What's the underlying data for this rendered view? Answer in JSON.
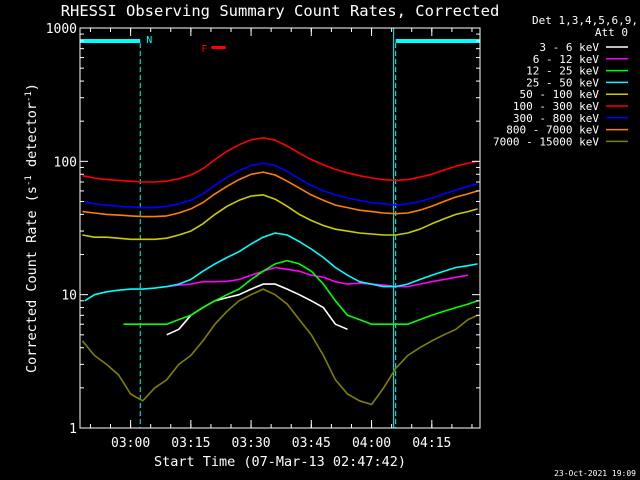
{
  "chart_data": {
    "type": "line",
    "title": "RHESSI Observing Summary Count Rates, Corrected",
    "xlabel": "Start Time (07-Mar-13 02:47:42)",
    "ylabel_main": "Corrected Count Rate (s",
    "ylabel_sup1": "-1",
    "ylabel_mid": " detector",
    "ylabel_sup2": "-1",
    "ylabel_end": ")",
    "yscale": "log",
    "ylim": [
      1,
      1000
    ],
    "xlim": [
      2.79,
      4.45
    ],
    "ytick_labels": [
      "1",
      "10",
      "100",
      "1000"
    ],
    "ytick_values": [
      1,
      10,
      100,
      1000
    ],
    "xtick_labels": [
      "03:00",
      "03:15",
      "03:30",
      "03:45",
      "04:00",
      "04:15"
    ],
    "xtick_values": [
      3.0,
      3.25,
      3.5,
      3.75,
      4.0,
      4.25
    ],
    "legend_title": [
      "Det 1,3,4,5,6,9,",
      "Att 0"
    ],
    "legend_placement": "right",
    "footer": "23-Oct-2021 19:09",
    "night_marker": "N",
    "flare_marker": "F",
    "night_intervals": [
      [
        2.79,
        3.04
      ],
      [
        4.1,
        4.45
      ]
    ],
    "flare_interval": [
      3.335,
      3.395
    ],
    "series": [
      {
        "name": "3 - 6 keV",
        "color": "#ffffff",
        "x": [
          3.15,
          3.2,
          3.25,
          3.3,
          3.35,
          3.4,
          3.45,
          3.5,
          3.55,
          3.6,
          3.65,
          3.7,
          3.75,
          3.8,
          3.85,
          3.9
        ],
        "y": [
          5,
          5.5,
          7,
          8,
          9,
          9.5,
          10,
          11,
          12,
          12,
          11,
          10,
          9,
          8,
          6,
          5.5
        ]
      },
      {
        "name": "6 - 12 keV",
        "color": "#ff00ff",
        "x": [
          3.15,
          3.2,
          3.25,
          3.3,
          3.35,
          3.4,
          3.45,
          3.5,
          3.55,
          3.6,
          3.65,
          3.7,
          3.75,
          3.8,
          3.85,
          3.9,
          3.95,
          4.0,
          4.05,
          4.1,
          4.15,
          4.2,
          4.25,
          4.3,
          4.35,
          4.4
        ],
        "y": [
          11.5,
          11.8,
          12,
          12.5,
          12.5,
          12.6,
          13,
          14,
          15,
          16,
          15.5,
          15,
          14,
          13.5,
          12.5,
          12,
          12.2,
          12,
          11.8,
          11.5,
          11.5,
          12,
          12.5,
          13,
          13.5,
          14
        ]
      },
      {
        "name": "12 - 25 keV",
        "color": "#00ff00",
        "x": [
          2.97,
          3.05,
          3.1,
          3.15,
          3.2,
          3.25,
          3.3,
          3.35,
          3.4,
          3.45,
          3.5,
          3.55,
          3.6,
          3.65,
          3.7,
          3.75,
          3.8,
          3.85,
          3.9,
          3.95,
          4.0,
          4.05,
          4.1,
          4.15,
          4.2,
          4.25,
          4.3,
          4.35,
          4.4,
          4.44
        ],
        "y": [
          6,
          6,
          6,
          6,
          6.5,
          7,
          8,
          9,
          10,
          11,
          13,
          15,
          17,
          18,
          17,
          15,
          12,
          9,
          7,
          6.5,
          6,
          6,
          6,
          6,
          6.5,
          7,
          7.5,
          8,
          8.5,
          9
        ]
      },
      {
        "name": "25 - 50 keV",
        "color": "#00ffff",
        "x": [
          2.81,
          2.85,
          2.9,
          2.95,
          3.0,
          3.05,
          3.1,
          3.15,
          3.2,
          3.25,
          3.3,
          3.35,
          3.4,
          3.45,
          3.5,
          3.55,
          3.6,
          3.65,
          3.7,
          3.75,
          3.8,
          3.85,
          3.9,
          3.95,
          4.0,
          4.05,
          4.1,
          4.15,
          4.2,
          4.25,
          4.3,
          4.35,
          4.4,
          4.44
        ],
        "y": [
          9,
          10,
          10.5,
          10.8,
          11,
          11,
          11.2,
          11.5,
          12,
          13,
          15,
          17,
          19,
          21,
          24,
          27,
          29,
          28,
          25,
          22,
          19,
          16,
          14,
          12.5,
          12,
          11.5,
          11.5,
          12,
          13,
          14,
          15,
          16,
          16.5,
          17
        ]
      },
      {
        "name": "50 - 100 keV",
        "color": "#cccc00",
        "x": [
          2.8,
          2.85,
          2.9,
          2.95,
          3.0,
          3.05,
          3.1,
          3.15,
          3.2,
          3.25,
          3.3,
          3.35,
          3.4,
          3.45,
          3.5,
          3.55,
          3.6,
          3.65,
          3.7,
          3.75,
          3.8,
          3.85,
          3.9,
          3.95,
          4.0,
          4.05,
          4.1,
          4.15,
          4.2,
          4.25,
          4.3,
          4.35,
          4.4,
          4.44
        ],
        "y": [
          28,
          27,
          27,
          26.5,
          26,
          26,
          26,
          26.5,
          28,
          30,
          34,
          40,
          46,
          51,
          55,
          56,
          52,
          46,
          40,
          36,
          33,
          31,
          30,
          29,
          28.5,
          28,
          28,
          29,
          31,
          34,
          37,
          40,
          42,
          44
        ]
      },
      {
        "name": "100 - 300 keV",
        "color": "#ff0000",
        "x": [
          2.8,
          2.85,
          2.9,
          2.95,
          3.0,
          3.05,
          3.1,
          3.15,
          3.2,
          3.25,
          3.3,
          3.35,
          3.4,
          3.45,
          3.5,
          3.55,
          3.6,
          3.65,
          3.7,
          3.75,
          3.8,
          3.85,
          3.9,
          3.95,
          4.0,
          4.05,
          4.1,
          4.15,
          4.2,
          4.25,
          4.3,
          4.35,
          4.4,
          4.44
        ],
        "y": [
          78,
          75,
          73,
          72,
          71,
          70,
          70,
          71,
          74,
          79,
          88,
          103,
          119,
          133,
          145,
          150,
          144,
          130,
          115,
          103,
          94,
          87,
          82,
          78,
          75,
          73,
          72,
          73,
          76,
          80,
          86,
          92,
          97,
          100
        ]
      },
      {
        "name": "300 - 800 keV",
        "color": "#0000ff",
        "x": [
          2.8,
          2.85,
          2.9,
          2.95,
          3.0,
          3.05,
          3.1,
          3.15,
          3.2,
          3.25,
          3.3,
          3.35,
          3.4,
          3.45,
          3.5,
          3.55,
          3.6,
          3.65,
          3.7,
          3.75,
          3.8,
          3.85,
          3.9,
          3.95,
          4.0,
          4.05,
          4.1,
          4.15,
          4.2,
          4.25,
          4.3,
          4.35,
          4.4,
          4.44
        ],
        "y": [
          50,
          48,
          47,
          46,
          45.5,
          45,
          45,
          46,
          48,
          51,
          57,
          66,
          76,
          85,
          93,
          97,
          93,
          84,
          74,
          66,
          60,
          56,
          53,
          51,
          49,
          48,
          47,
          48,
          50,
          53,
          57,
          61,
          65,
          68
        ]
      },
      {
        "name": "800 - 7000 keV",
        "color": "#ff8000",
        "x": [
          2.8,
          2.85,
          2.9,
          2.95,
          3.0,
          3.05,
          3.1,
          3.15,
          3.2,
          3.25,
          3.3,
          3.35,
          3.4,
          3.45,
          3.5,
          3.55,
          3.6,
          3.65,
          3.7,
          3.75,
          3.8,
          3.85,
          3.9,
          3.95,
          4.0,
          4.05,
          4.1,
          4.15,
          4.2,
          4.25,
          4.3,
          4.35,
          4.4,
          4.44
        ],
        "y": [
          42,
          41,
          40,
          39.5,
          39,
          38.5,
          38.5,
          39,
          41,
          44,
          49,
          57,
          65,
          73,
          80,
          83,
          79,
          71,
          63,
          56,
          51,
          47,
          45,
          43,
          42,
          41,
          40.5,
          41,
          43,
          46,
          50,
          54,
          57,
          60
        ]
      },
      {
        "name": "7000 - 15000 keV",
        "color": "#808000",
        "x": [
          2.8,
          2.85,
          2.9,
          2.95,
          3.0,
          3.05,
          3.1,
          3.15,
          3.2,
          3.25,
          3.3,
          3.35,
          3.4,
          3.45,
          3.5,
          3.55,
          3.6,
          3.65,
          3.7,
          3.75,
          3.8,
          3.85,
          3.9,
          3.95,
          4.0,
          4.05,
          4.1,
          4.15,
          4.2,
          4.25,
          4.3,
          4.35,
          4.4,
          4.44
        ],
        "y": [
          4.5,
          3.5,
          3,
          2.5,
          1.8,
          1.6,
          2.0,
          2.3,
          3.0,
          3.5,
          4.5,
          6,
          7.5,
          9,
          10,
          11,
          10,
          8.5,
          6.5,
          5,
          3.5,
          2.3,
          1.8,
          1.6,
          1.5,
          2.0,
          2.8,
          3.5,
          4,
          4.5,
          5,
          5.5,
          6.5,
          7
        ]
      }
    ]
  }
}
